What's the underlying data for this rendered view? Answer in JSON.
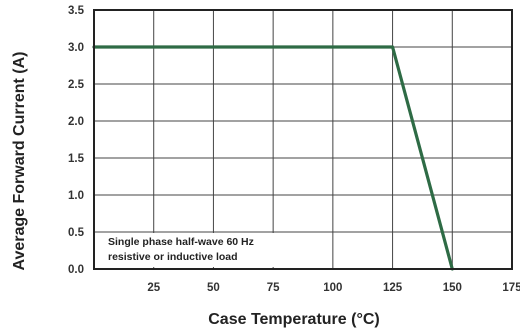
{
  "chart_data": {
    "type": "line",
    "xlabel": "Case Temperature (°C)",
    "ylabel": "Average Forward Current  (A)",
    "xlim": [
      0,
      175
    ],
    "ylim": [
      0,
      3.5
    ],
    "x_ticks": [
      25,
      50,
      75,
      100,
      125,
      150,
      175
    ],
    "y_ticks": [
      0.0,
      0.5,
      1.0,
      1.5,
      2.0,
      2.5,
      3.0,
      3.5
    ],
    "x_tick_labels": [
      "25",
      "50",
      "75",
      "100",
      "125",
      "150",
      "175"
    ],
    "y_tick_labels": [
      "0.0",
      "0.5",
      "1.0",
      "1.5",
      "2.0",
      "2.5",
      "3.0",
      "3.5"
    ],
    "grid": true,
    "series": [
      {
        "x": [
          0,
          125,
          150
        ],
        "y": [
          3.0,
          3.0,
          0.0
        ],
        "color": "#2e6b45"
      }
    ],
    "annotation_lines": [
      "Single phase half-wave 60 Hz",
      "resistive or inductive load"
    ]
  }
}
